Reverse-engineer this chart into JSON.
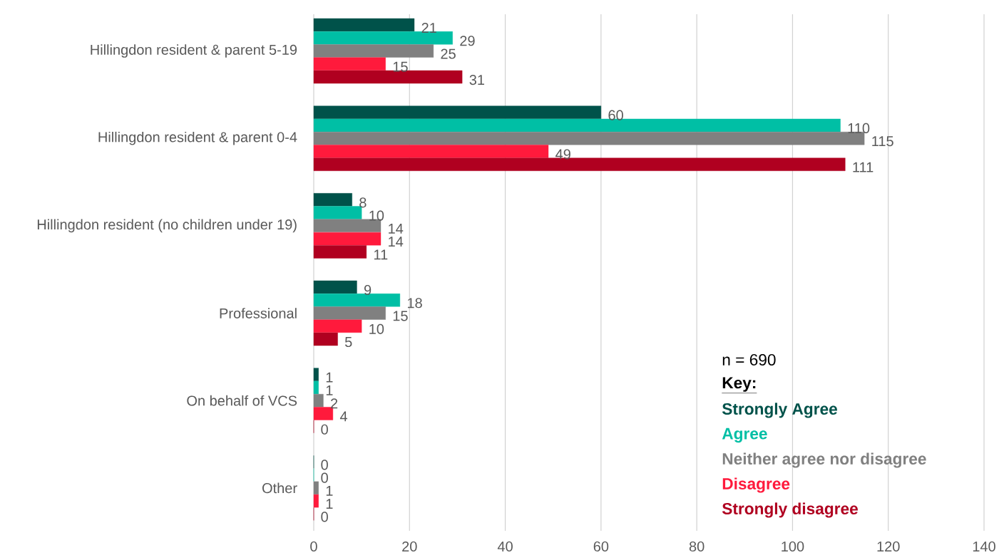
{
  "chart_data": {
    "type": "bar",
    "orientation": "horizontal",
    "categories": [
      "Hillingdon resident & parent 5-19",
      "Hillingdon resident & parent 0-4",
      "Hillingdon resident (no children under 19)",
      "Professional",
      "On behalf of VCS",
      "Other"
    ],
    "series": [
      {
        "name": "Strongly Agree",
        "color": "#00524a",
        "values": [
          21,
          60,
          8,
          9,
          1,
          0
        ]
      },
      {
        "name": "Agree",
        "color": "#00bfa5",
        "values": [
          29,
          110,
          10,
          18,
          1,
          0
        ]
      },
      {
        "name": "Neither agree nor disagree",
        "color": "#808080",
        "values": [
          25,
          115,
          14,
          15,
          2,
          1
        ]
      },
      {
        "name": "Disagree",
        "color": "#ff1a3c",
        "values": [
          15,
          49,
          14,
          10,
          4,
          1
        ]
      },
      {
        "name": "Strongly disagree",
        "color": "#b00020",
        "values": [
          31,
          111,
          11,
          5,
          0,
          0
        ]
      }
    ],
    "xlim": [
      0,
      140
    ],
    "xticks": [
      0,
      20,
      40,
      60,
      80,
      100,
      120,
      140
    ],
    "grid": "x",
    "data_labels": true,
    "legend": "bottom right",
    "legend_title": "Key:",
    "annotations": [
      "n = 690"
    ]
  }
}
